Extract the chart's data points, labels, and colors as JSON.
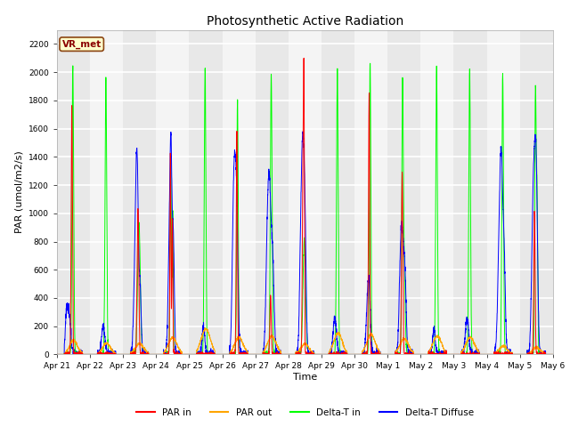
{
  "title": "Photosynthetic Active Radiation",
  "ylabel": "PAR (umol/m2/s)",
  "xlabel": "Time",
  "label_text": "VR_met",
  "legend": [
    "PAR in",
    "PAR out",
    "Delta-T in",
    "Delta-T Diffuse"
  ],
  "colors": [
    "red",
    "orange",
    "lime",
    "blue"
  ],
  "ylim": [
    0,
    2300
  ],
  "yticks": [
    0,
    200,
    400,
    600,
    800,
    1000,
    1200,
    1400,
    1600,
    1800,
    2000,
    2200
  ],
  "background_color": "#ffffff",
  "plot_bg_even": "#e8e8e8",
  "plot_bg_odd": "#f4f4f4",
  "grid_color": "#cccccc",
  "days": 15,
  "tick_labels": [
    "Apr 21",
    "Apr 22",
    "Apr 23",
    "Apr 24",
    "Apr 25",
    "Apr 26",
    "Apr 27",
    "Apr 28",
    "Apr 29",
    "Apr 30",
    "May 1",
    "May 2",
    "May 3",
    "May 4",
    "May 5",
    "May 6"
  ]
}
